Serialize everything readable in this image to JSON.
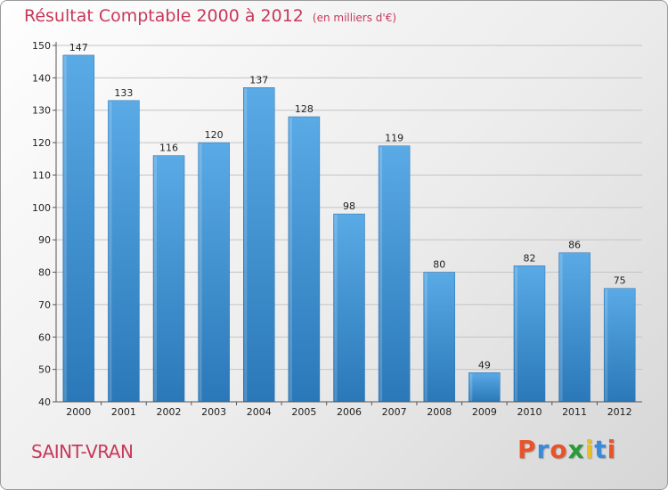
{
  "header": {
    "title": "Résultat Comptable 2000 à 2012",
    "subtitle": "(en milliers d'€)"
  },
  "footer": {
    "town": "SAINT-VRAN",
    "logo": "Proxiti"
  },
  "colors": {
    "title": "#c8385a",
    "bar_top": "#5aaae6",
    "bar_bottom": "#2a78b8",
    "logo_letters": [
      "#e8542a",
      "#3a8ad8",
      "#e8542a",
      "#2a9a3a",
      "#e8c020",
      "#3a8ad8",
      "#e8542a"
    ]
  },
  "chart_data": {
    "type": "bar",
    "categories": [
      "2000",
      "2001",
      "2002",
      "2003",
      "2004",
      "2005",
      "2006",
      "2007",
      "2008",
      "2009",
      "2010",
      "2011",
      "2012"
    ],
    "values": [
      147,
      133,
      116,
      120,
      137,
      128,
      98,
      119,
      80,
      49,
      82,
      86,
      75
    ],
    "title": "Résultat Comptable 2000 à 2012",
    "subtitle": "(en milliers d'€)",
    "xlabel": "",
    "ylabel": "",
    "ylim": [
      40,
      150
    ],
    "yticks": [
      40,
      50,
      60,
      70,
      80,
      90,
      100,
      110,
      120,
      130,
      140,
      150
    ],
    "grid": true
  }
}
